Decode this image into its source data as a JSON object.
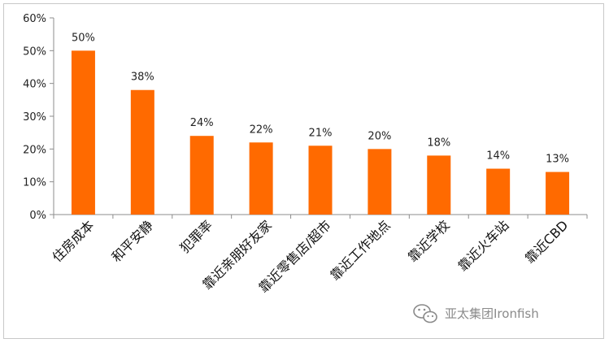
{
  "chart_data": {
    "type": "bar",
    "categories": [
      "住房成本",
      "和平安静",
      "犯罪率",
      "靠近亲朋好友家",
      "靠近零售店/超市",
      "靠近工作地点",
      "靠近学校",
      "靠近火车站",
      "靠近CBD"
    ],
    "values": [
      50,
      38,
      24,
      22,
      21,
      20,
      18,
      14,
      13
    ],
    "data_labels": [
      "50%",
      "38%",
      "24%",
      "22%",
      "21%",
      "20%",
      "18%",
      "14%",
      "13%"
    ],
    "ylim": [
      0,
      60
    ],
    "yticks": [
      0,
      10,
      20,
      30,
      40,
      50,
      60
    ],
    "ytick_labels": [
      "0%",
      "10%",
      "20%",
      "30%",
      "40%",
      "50%",
      "60%"
    ],
    "title": "",
    "xlabel": "",
    "ylabel": "",
    "grid": false,
    "legend": "none",
    "bar_color": "#ff6a00"
  },
  "watermark": {
    "text": "亚太集团Ironfish",
    "icon": "wechat-icon"
  }
}
